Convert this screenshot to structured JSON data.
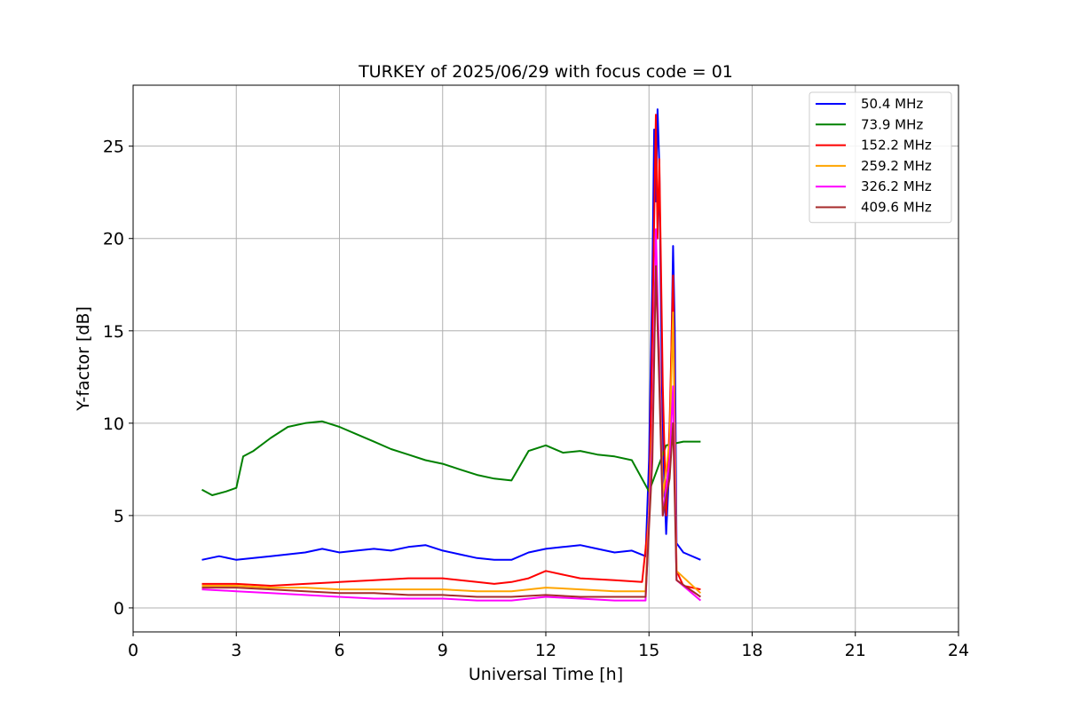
{
  "chart_data": {
    "type": "line",
    "title": "TURKEY of 2025/06/29 with focus code = 01",
    "xlabel": "Universal Time [h]",
    "ylabel": "Y-factor [dB]",
    "xlim": [
      0,
      24
    ],
    "ylim": [
      -1.3,
      28.3
    ],
    "xticks": [
      0,
      3,
      6,
      9,
      12,
      15,
      18,
      21,
      24
    ],
    "yticks": [
      0,
      5,
      10,
      15,
      20,
      25
    ],
    "grid": true,
    "legend_position": "top-right",
    "series": [
      {
        "name": " 50.4 MHz",
        "color": "#0000ff",
        "x": [
          2.0,
          2.5,
          3.0,
          3.5,
          4.0,
          4.5,
          5.0,
          5.5,
          6.0,
          6.5,
          7.0,
          7.5,
          8.0,
          8.5,
          9.0,
          9.5,
          10.0,
          10.5,
          11.0,
          11.5,
          12.0,
          12.5,
          13.0,
          13.5,
          14.0,
          14.5,
          14.9,
          15.0,
          15.1,
          15.15,
          15.2,
          15.25,
          15.3,
          15.35,
          15.4,
          15.5,
          15.6,
          15.7,
          15.75,
          15.8,
          16.0,
          16.5
        ],
        "y": [
          2.6,
          2.8,
          2.6,
          2.7,
          2.8,
          2.9,
          3.0,
          3.2,
          3.0,
          3.1,
          3.2,
          3.1,
          3.3,
          3.4,
          3.1,
          2.9,
          2.7,
          2.6,
          2.6,
          3.0,
          3.2,
          3.3,
          3.4,
          3.2,
          3.0,
          3.1,
          2.8,
          8.0,
          18.0,
          25.9,
          22.0,
          27.0,
          24.0,
          16.0,
          9.0,
          4.0,
          8.0,
          19.6,
          15.0,
          3.5,
          3.0,
          2.6
        ]
      },
      {
        "name": " 73.9 MHz",
        "color": "#008000",
        "x": [
          2.0,
          2.3,
          2.7,
          3.0,
          3.2,
          3.5,
          4.0,
          4.5,
          5.0,
          5.5,
          6.0,
          6.5,
          7.0,
          7.5,
          8.0,
          8.5,
          9.0,
          9.5,
          10.0,
          10.5,
          11.0,
          11.5,
          12.0,
          12.5,
          13.0,
          13.5,
          14.0,
          14.5,
          15.0,
          15.5,
          16.0,
          16.5
        ],
        "y": [
          6.4,
          6.1,
          6.3,
          6.5,
          8.2,
          8.5,
          9.2,
          9.8,
          10.0,
          10.1,
          9.8,
          9.4,
          9.0,
          8.6,
          8.3,
          8.0,
          7.8,
          7.5,
          7.2,
          7.0,
          6.9,
          8.5,
          8.8,
          8.4,
          8.5,
          8.3,
          8.2,
          8.0,
          6.3,
          8.8,
          9.0,
          9.0
        ]
      },
      {
        "name": "152.2 MHz",
        "color": "#ff0000",
        "x": [
          2.0,
          3.0,
          4.0,
          5.0,
          6.0,
          7.0,
          8.0,
          9.0,
          10.0,
          10.5,
          11.0,
          11.5,
          12.0,
          12.5,
          13.0,
          14.0,
          14.8,
          15.0,
          15.1,
          15.2,
          15.25,
          15.3,
          15.4,
          15.5,
          15.6,
          15.7,
          15.8,
          16.0,
          16.5
        ],
        "y": [
          1.3,
          1.3,
          1.2,
          1.3,
          1.4,
          1.5,
          1.6,
          1.6,
          1.4,
          1.3,
          1.4,
          1.6,
          2.0,
          1.8,
          1.6,
          1.5,
          1.4,
          5.0,
          15.0,
          26.7,
          20.0,
          24.3,
          12.0,
          5.0,
          10.0,
          18.0,
          2.0,
          1.2,
          1.0
        ]
      },
      {
        "name": "259.2 MHz",
        "color": "#ffa500",
        "x": [
          2.0,
          3.0,
          4.0,
          5.0,
          6.0,
          7.0,
          8.0,
          9.0,
          10.0,
          11.0,
          12.0,
          13.0,
          14.0,
          14.9,
          15.1,
          15.2,
          15.3,
          15.4,
          15.6,
          15.7,
          15.8,
          16.5
        ],
        "y": [
          1.2,
          1.2,
          1.1,
          1.1,
          1.0,
          1.0,
          1.0,
          1.0,
          0.9,
          0.9,
          1.1,
          1.0,
          0.9,
          0.9,
          10.0,
          18.0,
          14.0,
          6.0,
          9.0,
          16.0,
          2.0,
          0.8
        ]
      },
      {
        "name": "326.2 MHz",
        "color": "#ff00ff",
        "x": [
          2.0,
          3.0,
          4.0,
          5.0,
          6.0,
          7.0,
          8.0,
          9.0,
          10.0,
          11.0,
          12.0,
          13.0,
          14.0,
          14.9,
          15.1,
          15.2,
          15.3,
          15.4,
          15.6,
          15.7,
          15.8,
          16.5
        ],
        "y": [
          1.0,
          0.9,
          0.8,
          0.7,
          0.6,
          0.5,
          0.5,
          0.5,
          0.4,
          0.4,
          0.6,
          0.5,
          0.4,
          0.4,
          9.0,
          20.5,
          13.0,
          5.0,
          8.0,
          12.0,
          1.5,
          0.4
        ]
      },
      {
        "name": "409.6 MHz",
        "color": "#a52a2a",
        "x": [
          2.0,
          3.0,
          4.0,
          5.0,
          6.0,
          7.0,
          8.0,
          9.0,
          10.0,
          11.0,
          12.0,
          13.0,
          14.0,
          14.9,
          15.1,
          15.2,
          15.3,
          15.4,
          15.6,
          15.7,
          15.8,
          16.5
        ],
        "y": [
          1.1,
          1.1,
          1.0,
          0.9,
          0.8,
          0.8,
          0.7,
          0.7,
          0.6,
          0.6,
          0.7,
          0.6,
          0.6,
          0.6,
          8.0,
          18.5,
          12.0,
          5.0,
          7.0,
          10.0,
          1.5,
          0.6
        ]
      }
    ]
  }
}
